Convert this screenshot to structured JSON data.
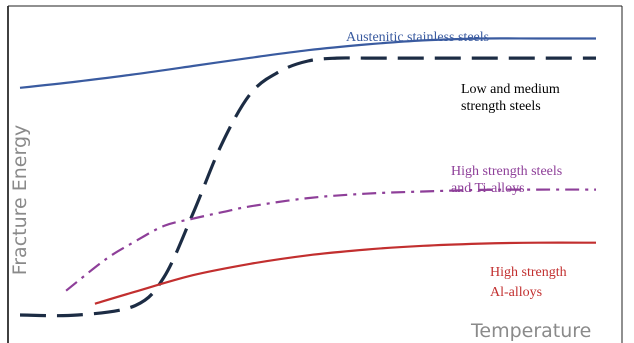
{
  "chart_data": {
    "type": "line",
    "title": "",
    "xlabel": "Temperature",
    "ylabel": "Fracture Energy",
    "x_ticks": "none",
    "y_ticks": "none",
    "grid": false,
    "legend": "labels placed beside each curve on the right",
    "xlim": [
      0,
      100
    ],
    "ylim": [
      0,
      100
    ],
    "series": [
      {
        "name": "Austenitic stainless steels",
        "color": "#3a5ba0",
        "style": "solid",
        "x": [
          0,
          10,
          20,
          30,
          40,
          50,
          60,
          70,
          80,
          90,
          100
        ],
        "y": [
          77.9,
          79.9,
          82.2,
          84.8,
          87.4,
          89.8,
          91.6,
          92.9,
          93.5,
          93.5,
          93.5
        ]
      },
      {
        "name": "Low and medium strength steels",
        "color": "#1c2c44",
        "style": "dashed",
        "x": [
          0,
          10,
          20,
          25,
          30,
          35,
          40,
          45,
          50,
          55,
          60,
          70,
          80,
          90,
          100
        ],
        "y": [
          6,
          6,
          9,
          18,
          38,
          60,
          76,
          83,
          86.4,
          87.3,
          87.3,
          87.3,
          87.3,
          87.3,
          87.3
        ]
      },
      {
        "name": "High strength steels and Ti-alloys",
        "color": "#8e3f99",
        "style": "dash-dot",
        "x": [
          8,
          15,
          20,
          25,
          30,
          35,
          40,
          50,
          60,
          70,
          80,
          90,
          100
        ],
        "y": [
          13.7,
          23.8,
          29.3,
          34.2,
          36.5,
          38.5,
          40.4,
          43,
          44.4,
          45.1,
          45.6,
          45.7,
          45.7
        ]
      },
      {
        "name": "High strength Al-alloys",
        "color": "#c22f2f",
        "style": "solid",
        "x": [
          13,
          20,
          30,
          40,
          50,
          60,
          70,
          80,
          90,
          100
        ],
        "y": [
          9.6,
          13.4,
          18.6,
          22.2,
          24.9,
          26.7,
          27.9,
          28.6,
          28.9,
          28.9
        ]
      }
    ],
    "curve_labels": [
      {
        "lines": [
          "Austenitic stainless steels"
        ],
        "color": "#3a5ba0"
      },
      {
        "lines": [
          "Low and medium",
          "strength steels"
        ],
        "color": "#000000"
      },
      {
        "lines": [
          "High strength steels",
          "and Ti-alloys"
        ],
        "color": "#8e3f99"
      },
      {
        "lines": [
          "High strength",
          "Al-alloys"
        ],
        "color": "#c22f2f"
      }
    ]
  }
}
